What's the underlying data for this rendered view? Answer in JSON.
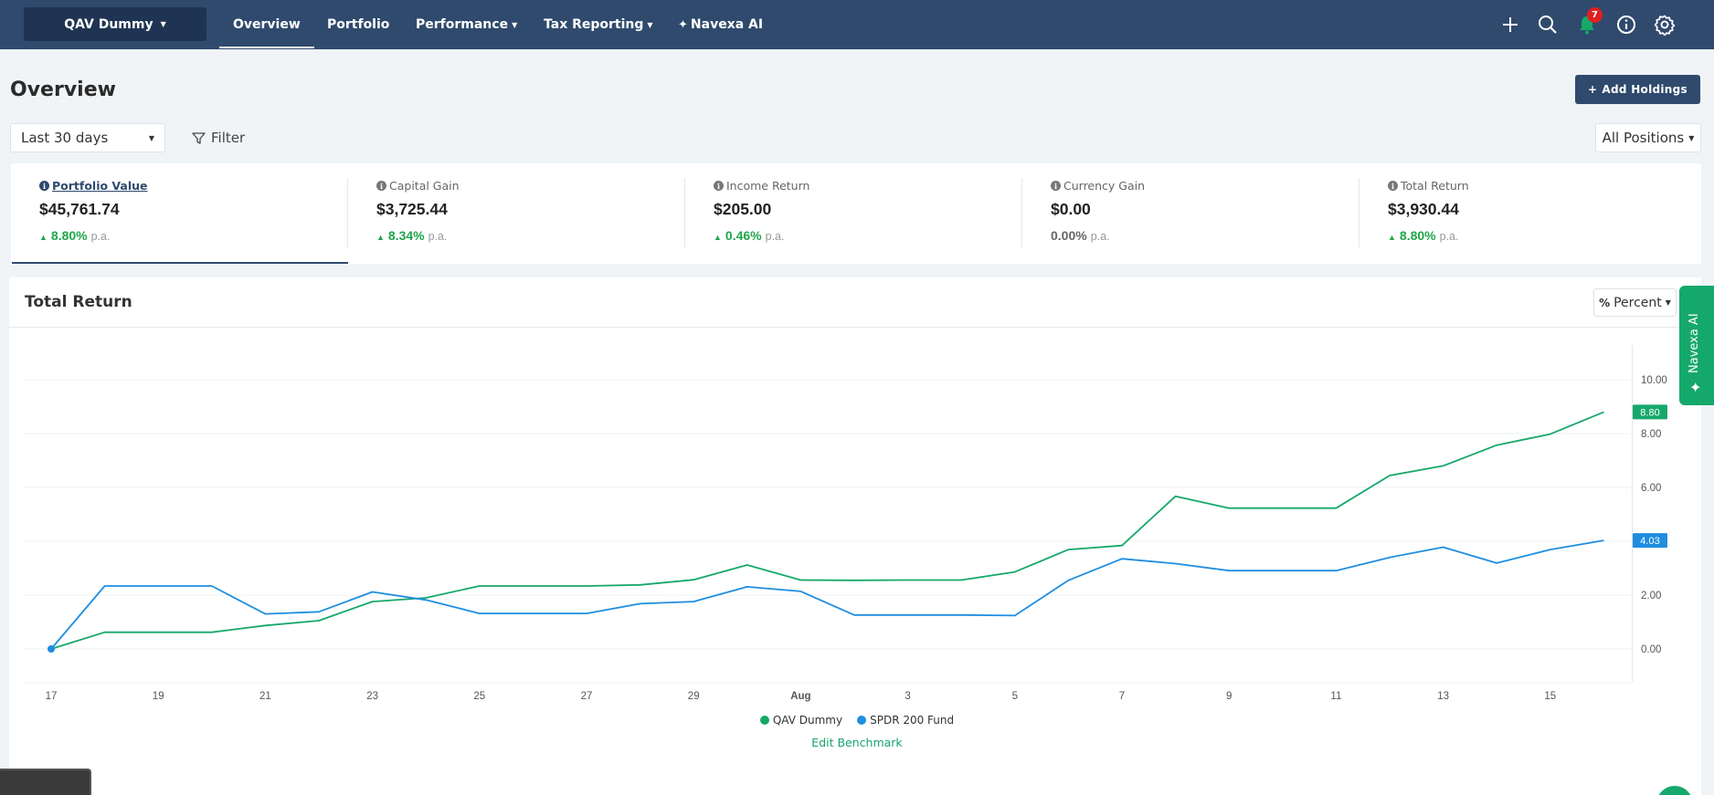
{
  "nav": {
    "portfolio_name": "QAV Dummy",
    "items": [
      {
        "label": "Overview",
        "active": true,
        "has_caret": false
      },
      {
        "label": "Portfolio",
        "active": false,
        "has_caret": false
      },
      {
        "label": "Performance",
        "active": false,
        "has_caret": true
      },
      {
        "label": "Tax Reporting",
        "active": false,
        "has_caret": true
      },
      {
        "label": "Navexa AI",
        "active": false,
        "has_caret": false
      }
    ],
    "notification_count": "7",
    "icons": [
      "plus-icon",
      "search-icon",
      "bell-icon",
      "info-icon",
      "gear-icon"
    ]
  },
  "page": {
    "title": "Overview",
    "add_holdings_label": "Add Holdings",
    "period_value": "Last 30 days",
    "filter_label": "Filter",
    "positions_value": "All Positions"
  },
  "metrics": [
    {
      "label": "Portfolio Value",
      "value": "$45,761.74",
      "change": "8.80%",
      "suffix": "p.a.",
      "direction": "up",
      "active": true
    },
    {
      "label": "Capital Gain",
      "value": "$3,725.44",
      "change": "8.34%",
      "suffix": "p.a.",
      "direction": "up",
      "active": false
    },
    {
      "label": "Income Return",
      "value": "$205.00",
      "change": "0.46%",
      "suffix": "p.a.",
      "direction": "up",
      "active": false
    },
    {
      "label": "Currency Gain",
      "value": "$0.00",
      "change": "0.00%",
      "suffix": "p.a.",
      "direction": "flat",
      "active": false
    },
    {
      "label": "Total Return",
      "value": "$3,930.44",
      "change": "8.80%",
      "suffix": "p.a.",
      "direction": "up",
      "active": false
    }
  ],
  "chart_section": {
    "title": "Total Return",
    "mode_label": "Percent",
    "side_tab_label": "Navexa AI",
    "edit_benchmark_label": "Edit Benchmark"
  },
  "colors": {
    "nav_bg": "#2f4a6d",
    "qav_series": "#16a86a",
    "benchmark_series": "#1f8ee0",
    "positive": "#1fa64a"
  },
  "chart_data": {
    "type": "line",
    "title": "",
    "xlabel": "",
    "ylabel": "",
    "x": [
      "Jul 17",
      "Jul 18",
      "Jul 19",
      "Jul 20",
      "Jul 21",
      "Jul 22",
      "Jul 23",
      "Jul 24",
      "Jul 25",
      "Jul 26",
      "Jul 27",
      "Jul 28",
      "Jul 29",
      "Jul 30",
      "Jul 31",
      "Aug 1",
      "Aug 2",
      "Aug 3",
      "Aug 4",
      "Aug 5",
      "Aug 6",
      "Aug 7",
      "Aug 8",
      "Aug 9",
      "Aug 10",
      "Aug 11",
      "Aug 12",
      "Aug 13",
      "Aug 14",
      "Aug 15"
    ],
    "x_tick_labels": [
      "17",
      "19",
      "21",
      "23",
      "25",
      "27",
      "29",
      "Aug",
      "3",
      "5",
      "7",
      "9",
      "11",
      "13",
      "15"
    ],
    "y_ticks": [
      "0.00",
      "2.00",
      "4.00",
      "6.00",
      "8.00",
      "10.00"
    ],
    "ylim": [
      -1.3,
      12.0
    ],
    "grid": true,
    "legend_position": "bottom",
    "series": [
      {
        "name": "QAV Dummy",
        "color": "#16a86a",
        "last_label": "8.80",
        "values": [
          0.0,
          0.62,
          0.62,
          0.62,
          0.87,
          1.05,
          1.76,
          1.9,
          2.34,
          2.34,
          2.34,
          2.38,
          2.57,
          3.12,
          2.56,
          2.55,
          2.56,
          2.56,
          2.86,
          3.69,
          3.84,
          5.67,
          5.23,
          5.23,
          5.23,
          6.44,
          6.8,
          7.57,
          7.98,
          8.8
        ]
      },
      {
        "name": "SPDR 200 Fund",
        "color": "#1f8ee0",
        "last_label": "4.03",
        "values": [
          0.0,
          2.34,
          2.34,
          2.34,
          1.3,
          1.38,
          2.12,
          1.82,
          1.32,
          1.32,
          1.32,
          1.68,
          1.76,
          2.31,
          2.14,
          1.26,
          1.26,
          1.26,
          1.24,
          2.55,
          3.35,
          3.17,
          2.91,
          2.91,
          2.91,
          3.4,
          3.78,
          3.19,
          3.69,
          4.03
        ]
      }
    ]
  }
}
